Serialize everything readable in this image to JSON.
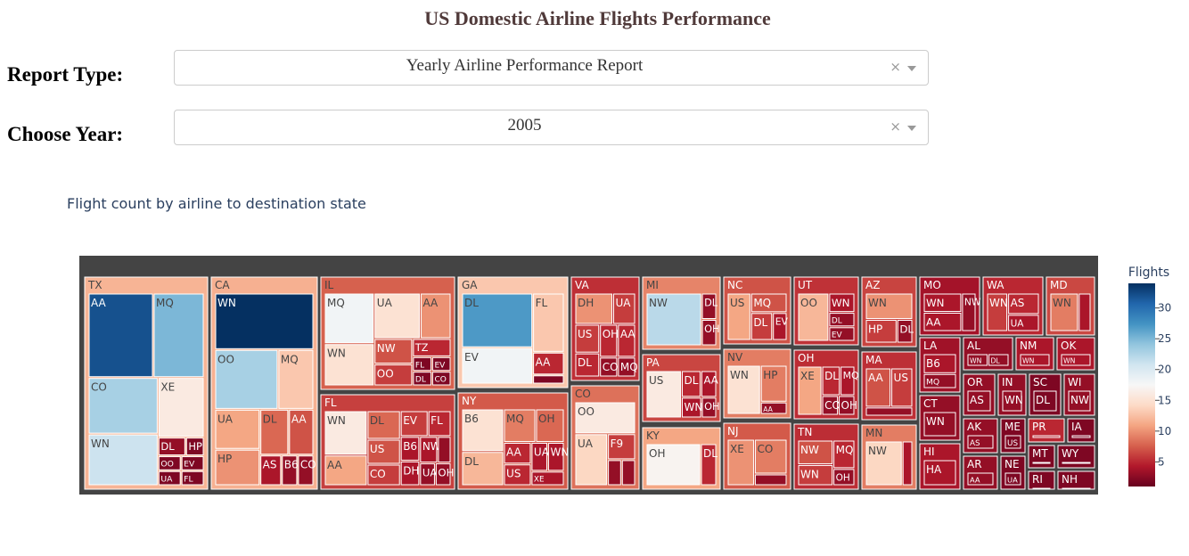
{
  "header": {
    "title": "US Domestic Airline Flights Performance"
  },
  "controls": {
    "report_type": {
      "label": "Report Type:",
      "value": "Yearly Airline Performance Report"
    },
    "year": {
      "label": "Choose Year:",
      "value": "2005"
    }
  },
  "chart_data": {
    "type": "treemap",
    "title": "Flight count by airline to destination state",
    "colorbar": {
      "title": "Flights",
      "ticks": [
        5,
        10,
        15,
        20,
        25,
        30
      ],
      "range": [
        1,
        34
      ],
      "colorscale": "RdBu"
    },
    "states": [
      {
        "label": "TX",
        "children": [
          [
            "AA",
            32
          ],
          [
            "MQ",
            25
          ],
          [
            "CO",
            23
          ],
          [
            "XE",
            16
          ],
          [
            "WN",
            21
          ],
          [
            "DL",
            3
          ],
          [
            "HP",
            2
          ],
          [
            "OO",
            2
          ],
          [
            "UA",
            2
          ],
          [
            "EV",
            2
          ],
          [
            "FL",
            2
          ]
        ]
      },
      {
        "label": "CA",
        "children": [
          [
            "WN",
            34
          ],
          [
            "OO",
            23
          ],
          [
            "MQ",
            13
          ],
          [
            "UA",
            11
          ],
          [
            "DL",
            8
          ],
          [
            "AA",
            7
          ],
          [
            "HP",
            10
          ],
          [
            "AS",
            4
          ],
          [
            "B6",
            3
          ],
          [
            "CO",
            3
          ]
        ]
      },
      {
        "label": "IL",
        "children": [
          [
            "MQ",
            18
          ],
          [
            "WN",
            15
          ],
          [
            "AA",
            10
          ],
          [
            "UA",
            15
          ],
          [
            "NW",
            7
          ],
          [
            "TZ",
            5
          ],
          [
            "OO",
            6
          ],
          [
            "FL",
            2
          ],
          [
            "DL",
            2
          ],
          [
            "EV",
            2
          ],
          [
            "CO",
            2
          ]
        ]
      },
      {
        "label": "FL",
        "children": [
          [
            "WN",
            16
          ],
          [
            "DL",
            8
          ],
          [
            "CO",
            6
          ],
          [
            "B6",
            4
          ],
          [
            "EV",
            6
          ],
          [
            "DH",
            4
          ],
          [
            "FL",
            5
          ],
          [
            "AA",
            11
          ],
          [
            "US",
            7
          ],
          [
            "NW",
            4
          ],
          [
            "MQ",
            3
          ],
          [
            "UA",
            3
          ],
          [
            "OH",
            3
          ]
        ]
      },
      {
        "label": "GA",
        "children": [
          [
            "DL",
            27
          ],
          [
            "EV",
            18
          ],
          [
            "FL",
            13
          ],
          [
            "AA",
            5
          ],
          [
            "OH",
            2
          ]
        ]
      },
      {
        "label": "NY",
        "children": [
          [
            "B6",
            15
          ],
          [
            "MQ",
            9
          ],
          [
            "OH",
            8
          ],
          [
            "DL",
            12
          ],
          [
            "AA",
            5
          ],
          [
            "UA",
            4
          ],
          [
            "WN",
            4
          ],
          [
            "US",
            5
          ],
          [
            "XE",
            4
          ]
        ]
      },
      {
        "label": "VA",
        "children": [
          [
            "DH",
            10
          ],
          [
            "UA",
            6
          ],
          [
            "US",
            6
          ],
          [
            "DL",
            5
          ],
          [
            "OH",
            5
          ],
          [
            "CO",
            3
          ],
          [
            "AA",
            5
          ],
          [
            "MQ",
            3
          ]
        ]
      },
      {
        "label": "CO",
        "children": [
          [
            "OO",
            16
          ],
          [
            "UA",
            14
          ],
          [
            "F9",
            6
          ],
          [
            "WN",
            3
          ],
          [
            "XE",
            3
          ]
        ]
      },
      {
        "label": "MI",
        "children": [
          [
            "NW",
            22
          ],
          [
            "DL",
            3
          ],
          [
            "OH",
            3
          ]
        ]
      },
      {
        "label": "PA",
        "children": [
          [
            "US",
            16
          ],
          [
            "DL",
            5
          ],
          [
            "AA",
            4
          ],
          [
            "WN",
            4
          ],
          [
            "OH",
            3
          ]
        ]
      },
      {
        "label": "KY",
        "children": [
          [
            "OH",
            17
          ],
          [
            "DL",
            5
          ]
        ]
      },
      {
        "label": "NC",
        "children": [
          [
            "US",
            11
          ],
          [
            "MQ",
            7
          ],
          [
            "DL",
            6
          ],
          [
            "EV",
            4
          ]
        ]
      },
      {
        "label": "NV",
        "children": [
          [
            "WN",
            15
          ],
          [
            "HP",
            9
          ],
          [
            "AA",
            3
          ]
        ]
      },
      {
        "label": "NJ",
        "children": [
          [
            "CO",
            9
          ],
          [
            "XE",
            10
          ],
          [
            "AA",
            3
          ]
        ]
      },
      {
        "label": "UT",
        "children": [
          [
            "OO",
            12
          ],
          [
            "WN",
            4
          ],
          [
            "DL",
            3
          ],
          [
            "EV",
            3
          ]
        ]
      },
      {
        "label": "OH",
        "children": [
          [
            "XE",
            11
          ],
          [
            "DL",
            5
          ],
          [
            "MQ",
            4
          ],
          [
            "CO",
            3
          ],
          [
            "OH",
            3
          ]
        ]
      },
      {
        "label": "TN",
        "children": [
          [
            "NW",
            7
          ],
          [
            "MQ",
            5
          ],
          [
            "WN",
            6
          ],
          [
            "OH",
            3
          ]
        ]
      },
      {
        "label": "AZ",
        "children": [
          [
            "WN",
            10
          ],
          [
            "HP",
            6
          ],
          [
            "DL",
            3
          ]
        ]
      },
      {
        "label": "MA",
        "children": [
          [
            "US",
            6
          ],
          [
            "AA",
            7
          ],
          [
            "DL",
            3
          ]
        ]
      },
      {
        "label": "MN",
        "children": [
          [
            "NW",
            14
          ],
          [
            "DL",
            4
          ]
        ]
      },
      {
        "label": "MO",
        "children": [
          [
            "WN",
            4
          ],
          [
            "AA",
            4
          ],
          [
            "NW",
            3
          ]
        ]
      },
      {
        "label": "WA",
        "children": [
          [
            "AS",
            5
          ],
          [
            "WN",
            6
          ],
          [
            "UA",
            4
          ]
        ]
      },
      {
        "label": "MD",
        "children": [
          [
            "WN",
            9
          ],
          [
            "FL",
            4
          ]
        ]
      },
      {
        "label": "LA",
        "children": [
          [
            "B6",
            4
          ],
          [
            "MQ",
            3
          ]
        ]
      },
      {
        "label": "AL",
        "children": [
          [
            "WN",
            3
          ],
          [
            "DL",
            3
          ]
        ]
      },
      {
        "label": "NM",
        "children": [
          [
            "WN",
            4
          ]
        ]
      },
      {
        "label": "OK",
        "children": [
          [
            "WN",
            4
          ]
        ]
      },
      {
        "label": "CT",
        "children": [
          [
            "WN",
            3
          ]
        ]
      },
      {
        "label": "OR",
        "children": [
          [
            "AS",
            3
          ]
        ]
      },
      {
        "label": "IN",
        "children": [
          [
            "WN",
            3
          ]
        ]
      },
      {
        "label": "SC",
        "children": [
          [
            "DL",
            2
          ]
        ]
      },
      {
        "label": "WI",
        "children": [
          [
            "NW",
            3
          ]
        ]
      },
      {
        "label": "HI",
        "children": [
          [
            "HA",
            4
          ]
        ]
      },
      {
        "label": "AK",
        "children": [
          [
            "AS",
            3
          ]
        ]
      },
      {
        "label": "ME",
        "children": [
          [
            "US",
            2
          ]
        ]
      },
      {
        "label": "PR",
        "children": [
          [
            "AA",
            5
          ]
        ]
      },
      {
        "label": "IA",
        "children": [
          [
            "NW",
            2
          ]
        ]
      },
      {
        "label": "AR",
        "children": [
          [
            "AA",
            3
          ]
        ]
      },
      {
        "label": "NE",
        "children": [
          [
            "UA",
            2
          ]
        ]
      },
      {
        "label": "MT",
        "children": [
          [
            "NW",
            2
          ]
        ]
      },
      {
        "label": "WY",
        "children": [
          [
            "SK",
            2
          ]
        ]
      },
      {
        "label": "RI",
        "children": [
          [
            "US",
            2
          ]
        ]
      },
      {
        "label": "NH",
        "children": [
          [
            "US",
            2
          ]
        ]
      }
    ]
  }
}
